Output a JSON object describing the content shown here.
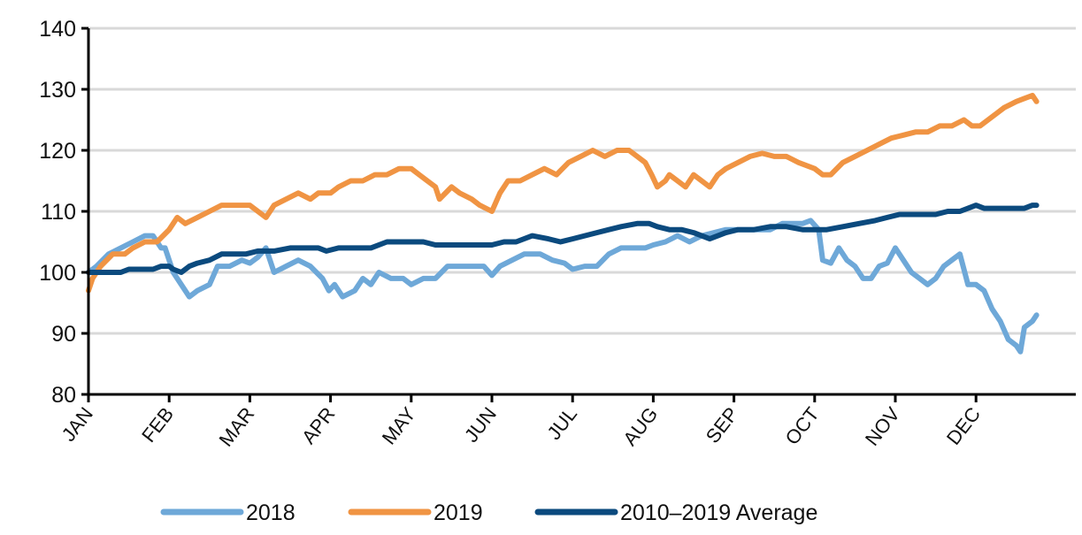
{
  "chart_data": {
    "type": "line",
    "title": "",
    "xlabel": "",
    "ylabel": "",
    "ylim": [
      80,
      140
    ],
    "yticks": [
      80,
      90,
      100,
      110,
      120,
      130,
      140
    ],
    "months": [
      "JAN",
      "FEB",
      "MAR",
      "APR",
      "MAY",
      "JUN",
      "JUL",
      "AUG",
      "SEP",
      "OCT",
      "NOV",
      "DEC"
    ],
    "grid": "horizontal",
    "legend": "bottom",
    "series": [
      {
        "name": "2018",
        "color": "#6ea8d8",
        "points": [
          [
            0,
            100
          ],
          [
            0.1,
            101
          ],
          [
            0.25,
            103
          ],
          [
            0.4,
            104
          ],
          [
            0.55,
            105
          ],
          [
            0.7,
            106
          ],
          [
            0.8,
            106
          ],
          [
            0.9,
            104
          ],
          [
            0.95,
            104
          ],
          [
            1.05,
            100
          ],
          [
            1.15,
            98
          ],
          [
            1.25,
            96
          ],
          [
            1.35,
            97
          ],
          [
            1.5,
            98
          ],
          [
            1.6,
            101
          ],
          [
            1.75,
            101
          ],
          [
            1.9,
            102
          ],
          [
            2.0,
            101.5
          ],
          [
            2.1,
            102.5
          ],
          [
            2.2,
            104
          ],
          [
            2.3,
            100
          ],
          [
            2.45,
            101
          ],
          [
            2.6,
            102
          ],
          [
            2.75,
            101
          ],
          [
            2.9,
            99
          ],
          [
            2.98,
            97
          ],
          [
            3.05,
            98
          ],
          [
            3.15,
            96
          ],
          [
            3.3,
            97
          ],
          [
            3.4,
            99
          ],
          [
            3.5,
            98
          ],
          [
            3.6,
            100
          ],
          [
            3.75,
            99
          ],
          [
            3.9,
            99
          ],
          [
            4.0,
            98
          ],
          [
            4.15,
            99
          ],
          [
            4.3,
            99
          ],
          [
            4.45,
            101
          ],
          [
            4.6,
            101
          ],
          [
            4.75,
            101
          ],
          [
            4.9,
            101
          ],
          [
            5.0,
            99.5
          ],
          [
            5.1,
            101
          ],
          [
            5.25,
            102
          ],
          [
            5.4,
            103
          ],
          [
            5.6,
            103
          ],
          [
            5.75,
            102
          ],
          [
            5.9,
            101.5
          ],
          [
            6.0,
            100.5
          ],
          [
            6.15,
            101
          ],
          [
            6.3,
            101
          ],
          [
            6.45,
            103
          ],
          [
            6.6,
            104
          ],
          [
            6.75,
            104
          ],
          [
            6.9,
            104
          ],
          [
            7.0,
            104.5
          ],
          [
            7.15,
            105
          ],
          [
            7.3,
            106
          ],
          [
            7.45,
            105
          ],
          [
            7.6,
            106
          ],
          [
            7.75,
            106.5
          ],
          [
            7.9,
            107
          ],
          [
            8.0,
            107
          ],
          [
            8.15,
            107
          ],
          [
            8.3,
            107
          ],
          [
            8.45,
            107
          ],
          [
            8.6,
            108
          ],
          [
            8.75,
            108
          ],
          [
            8.85,
            108
          ],
          [
            8.95,
            108.5
          ],
          [
            9.05,
            107
          ],
          [
            9.1,
            102
          ],
          [
            9.2,
            101.5
          ],
          [
            9.3,
            104
          ],
          [
            9.4,
            102
          ],
          [
            9.5,
            101
          ],
          [
            9.6,
            99
          ],
          [
            9.7,
            99
          ],
          [
            9.8,
            101
          ],
          [
            9.9,
            101.5
          ],
          [
            10.0,
            104
          ],
          [
            10.1,
            102
          ],
          [
            10.2,
            100
          ],
          [
            10.3,
            99
          ],
          [
            10.4,
            98
          ],
          [
            10.5,
            99
          ],
          [
            10.6,
            101
          ],
          [
            10.7,
            102
          ],
          [
            10.8,
            103
          ],
          [
            10.9,
            98
          ],
          [
            11.0,
            98
          ],
          [
            11.1,
            97
          ],
          [
            11.2,
            94
          ],
          [
            11.3,
            92
          ],
          [
            11.4,
            89
          ],
          [
            11.5,
            88
          ],
          [
            11.55,
            87
          ],
          [
            11.6,
            91
          ],
          [
            11.7,
            92
          ],
          [
            11.75,
            93
          ]
        ]
      },
      {
        "name": "2019",
        "color": "#f09443",
        "points": [
          [
            0,
            97
          ],
          [
            0.05,
            99
          ],
          [
            0.15,
            101
          ],
          [
            0.3,
            103
          ],
          [
            0.45,
            103
          ],
          [
            0.55,
            104
          ],
          [
            0.7,
            105
          ],
          [
            0.85,
            105
          ],
          [
            1.0,
            107
          ],
          [
            1.1,
            109
          ],
          [
            1.2,
            108
          ],
          [
            1.35,
            109
          ],
          [
            1.5,
            110
          ],
          [
            1.65,
            111
          ],
          [
            1.8,
            111
          ],
          [
            2.0,
            111
          ],
          [
            2.1,
            110
          ],
          [
            2.2,
            109
          ],
          [
            2.3,
            111
          ],
          [
            2.45,
            112
          ],
          [
            2.6,
            113
          ],
          [
            2.75,
            112
          ],
          [
            2.85,
            113
          ],
          [
            3.0,
            113
          ],
          [
            3.1,
            114
          ],
          [
            3.25,
            115
          ],
          [
            3.4,
            115
          ],
          [
            3.55,
            116
          ],
          [
            3.7,
            116
          ],
          [
            3.85,
            117
          ],
          [
            4.0,
            117
          ],
          [
            4.1,
            116
          ],
          [
            4.2,
            115
          ],
          [
            4.3,
            114
          ],
          [
            4.35,
            112
          ],
          [
            4.5,
            114
          ],
          [
            4.6,
            113
          ],
          [
            4.75,
            112
          ],
          [
            4.85,
            111
          ],
          [
            5.0,
            110
          ],
          [
            5.1,
            113
          ],
          [
            5.2,
            115
          ],
          [
            5.35,
            115
          ],
          [
            5.5,
            116
          ],
          [
            5.65,
            117
          ],
          [
            5.8,
            116
          ],
          [
            5.95,
            118
          ],
          [
            6.1,
            119
          ],
          [
            6.25,
            120
          ],
          [
            6.4,
            119
          ],
          [
            6.55,
            120
          ],
          [
            6.7,
            120
          ],
          [
            6.8,
            119
          ],
          [
            6.9,
            118
          ],
          [
            6.98,
            116
          ],
          [
            7.05,
            114
          ],
          [
            7.15,
            115
          ],
          [
            7.2,
            116
          ],
          [
            7.3,
            115
          ],
          [
            7.4,
            114
          ],
          [
            7.5,
            116
          ],
          [
            7.6,
            115
          ],
          [
            7.7,
            114
          ],
          [
            7.8,
            116
          ],
          [
            7.9,
            117
          ],
          [
            8.05,
            118
          ],
          [
            8.2,
            119
          ],
          [
            8.35,
            119.5
          ],
          [
            8.5,
            119
          ],
          [
            8.65,
            119
          ],
          [
            8.8,
            118
          ],
          [
            9.0,
            117
          ],
          [
            9.1,
            116
          ],
          [
            9.2,
            116
          ],
          [
            9.35,
            118
          ],
          [
            9.5,
            119
          ],
          [
            9.65,
            120
          ],
          [
            9.8,
            121
          ],
          [
            9.95,
            122
          ],
          [
            10.1,
            122.5
          ],
          [
            10.25,
            123
          ],
          [
            10.4,
            123
          ],
          [
            10.55,
            124
          ],
          [
            10.7,
            124
          ],
          [
            10.85,
            125
          ],
          [
            10.95,
            124
          ],
          [
            11.05,
            124
          ],
          [
            11.15,
            125
          ],
          [
            11.25,
            126
          ],
          [
            11.35,
            127
          ],
          [
            11.5,
            128
          ],
          [
            11.6,
            128.5
          ],
          [
            11.7,
            129
          ],
          [
            11.75,
            128
          ]
        ]
      },
      {
        "name": "2010–2019 Average",
        "color": "#0b4a7e",
        "points": [
          [
            0,
            100
          ],
          [
            0.2,
            100
          ],
          [
            0.4,
            100
          ],
          [
            0.5,
            100.5
          ],
          [
            0.65,
            100.5
          ],
          [
            0.8,
            100.5
          ],
          [
            0.9,
            101
          ],
          [
            1.0,
            101
          ],
          [
            1.05,
            100.5
          ],
          [
            1.15,
            100
          ],
          [
            1.25,
            101
          ],
          [
            1.35,
            101.5
          ],
          [
            1.5,
            102
          ],
          [
            1.65,
            103
          ],
          [
            1.8,
            103
          ],
          [
            1.95,
            103
          ],
          [
            2.1,
            103.5
          ],
          [
            2.3,
            103.5
          ],
          [
            2.5,
            104
          ],
          [
            2.7,
            104
          ],
          [
            2.85,
            104
          ],
          [
            2.95,
            103.5
          ],
          [
            3.1,
            104
          ],
          [
            3.3,
            104
          ],
          [
            3.5,
            104
          ],
          [
            3.7,
            105
          ],
          [
            3.85,
            105
          ],
          [
            4.0,
            105
          ],
          [
            4.15,
            105
          ],
          [
            4.3,
            104.5
          ],
          [
            4.5,
            104.5
          ],
          [
            4.7,
            104.5
          ],
          [
            4.9,
            104.5
          ],
          [
            5.0,
            104.5
          ],
          [
            5.15,
            105
          ],
          [
            5.3,
            105
          ],
          [
            5.5,
            106
          ],
          [
            5.7,
            105.5
          ],
          [
            5.85,
            105
          ],
          [
            6.0,
            105.5
          ],
          [
            6.15,
            106
          ],
          [
            6.3,
            106.5
          ],
          [
            6.45,
            107
          ],
          [
            6.6,
            107.5
          ],
          [
            6.8,
            108
          ],
          [
            6.95,
            108
          ],
          [
            7.05,
            107.5
          ],
          [
            7.2,
            107
          ],
          [
            7.35,
            107
          ],
          [
            7.5,
            106.5
          ],
          [
            7.6,
            106
          ],
          [
            7.7,
            105.5
          ],
          [
            7.8,
            106
          ],
          [
            7.9,
            106.5
          ],
          [
            8.05,
            107
          ],
          [
            8.25,
            107
          ],
          [
            8.45,
            107.5
          ],
          [
            8.65,
            107.5
          ],
          [
            8.85,
            107
          ],
          [
            9.0,
            107
          ],
          [
            9.15,
            107
          ],
          [
            9.35,
            107.5
          ],
          [
            9.55,
            108
          ],
          [
            9.75,
            108.5
          ],
          [
            9.9,
            109
          ],
          [
            10.05,
            109.5
          ],
          [
            10.2,
            109.5
          ],
          [
            10.35,
            109.5
          ],
          [
            10.5,
            109.5
          ],
          [
            10.65,
            110
          ],
          [
            10.8,
            110
          ],
          [
            10.9,
            110.5
          ],
          [
            11.0,
            111
          ],
          [
            11.1,
            110.5
          ],
          [
            11.3,
            110.5
          ],
          [
            11.5,
            110.5
          ],
          [
            11.6,
            110.5
          ],
          [
            11.7,
            111
          ],
          [
            11.75,
            111
          ]
        ]
      }
    ]
  }
}
